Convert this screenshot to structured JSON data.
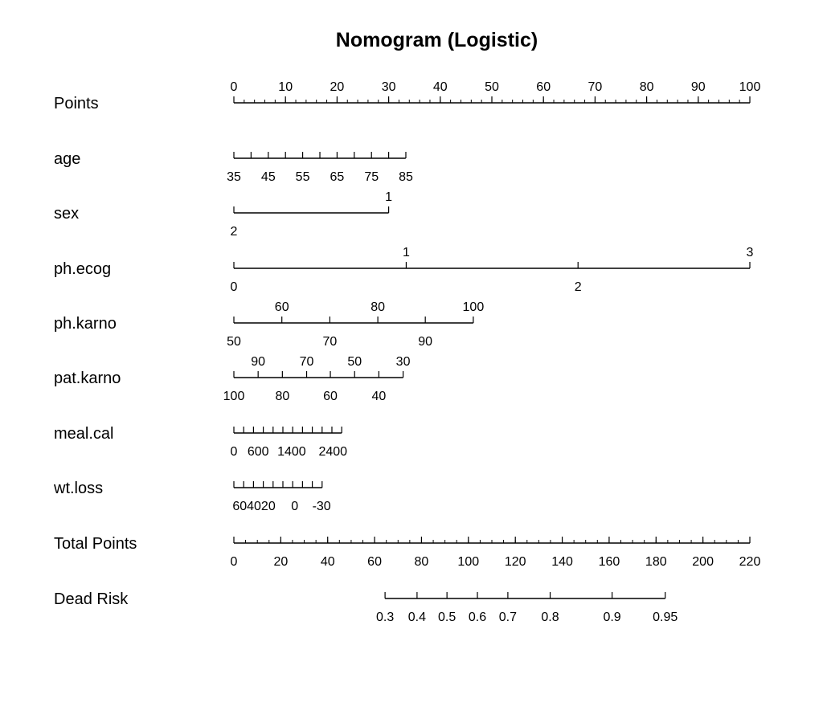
{
  "chart_data": {
    "type": "nomogram",
    "title": "Nomogram (Logistic)",
    "points_per_unit_px": 6.42,
    "rows": [
      {
        "label": "Points",
        "min": 0,
        "max": 100,
        "major": [
          0,
          10,
          20,
          30,
          40,
          50,
          60,
          70,
          80,
          90,
          100
        ],
        "minor": [
          0,
          2,
          4,
          6,
          8,
          10,
          12,
          14,
          16,
          18,
          20,
          22,
          24,
          26,
          28,
          30,
          32,
          34,
          36,
          38,
          40,
          42,
          44,
          46,
          48,
          50,
          52,
          54,
          56,
          58,
          60,
          62,
          64,
          66,
          68,
          70,
          72,
          74,
          76,
          78,
          80,
          82,
          84,
          86,
          88,
          90,
          92,
          94,
          96,
          98,
          100
        ],
        "labels_above": [
          {
            "text": "0",
            "at": 0
          },
          {
            "text": "10",
            "at": 10
          },
          {
            "text": "20",
            "at": 20
          },
          {
            "text": "30",
            "at": 30
          },
          {
            "text": "40",
            "at": 40
          },
          {
            "text": "50",
            "at": 50
          },
          {
            "text": "60",
            "at": 60
          },
          {
            "text": "70",
            "at": 70
          },
          {
            "text": "80",
            "at": 80
          },
          {
            "text": "90",
            "at": 90
          },
          {
            "text": "100",
            "at": 100
          }
        ],
        "labels_below": []
      },
      {
        "label": "age",
        "min": 0,
        "max": 33.3,
        "major": [
          0,
          3.33,
          6.67,
          10,
          13.33,
          16.67,
          20,
          23.33,
          26.67,
          30,
          33.33
        ],
        "labels_above": [],
        "labels_below": [
          {
            "text": "35",
            "at": 0
          },
          {
            "text": "45",
            "at": 6.67
          },
          {
            "text": "55",
            "at": 13.33
          },
          {
            "text": "65",
            "at": 20
          },
          {
            "text": "75",
            "at": 26.67
          },
          {
            "text": "85",
            "at": 33.33
          }
        ]
      },
      {
        "label": "sex",
        "min": 0,
        "max": 30,
        "major": [
          0,
          30
        ],
        "labels_above": [
          {
            "text": "1",
            "at": 30
          }
        ],
        "labels_below": [
          {
            "text": "2",
            "at": 0
          }
        ]
      },
      {
        "label": "ph.ecog",
        "min": 0,
        "max": 100,
        "major": [
          0,
          33.4,
          66.7,
          100
        ],
        "labels_above": [
          {
            "text": "1",
            "at": 33.4
          },
          {
            "text": "3",
            "at": 100
          }
        ],
        "labels_below": [
          {
            "text": "0",
            "at": 0
          },
          {
            "text": "2",
            "at": 66.7
          }
        ]
      },
      {
        "label": "ph.karno",
        "min": 0,
        "max": 46.4,
        "major": [
          0,
          9.3,
          18.6,
          27.9,
          37.1,
          46.4
        ],
        "labels_above": [
          {
            "text": "60",
            "at": 9.3
          },
          {
            "text": "80",
            "at": 27.9
          },
          {
            "text": "100",
            "at": 46.4
          }
        ],
        "labels_below": [
          {
            "text": "50",
            "at": 0
          },
          {
            "text": "70",
            "at": 18.6
          },
          {
            "text": "90",
            "at": 37.1
          }
        ]
      },
      {
        "label": "pat.karno",
        "min": 0,
        "max": 32.8,
        "major": [
          0,
          4.7,
          9.4,
          14.1,
          18.7,
          23.4,
          28.1,
          32.8
        ],
        "labels_above": [
          {
            "text": "90",
            "at": 4.7
          },
          {
            "text": "70",
            "at": 14.1
          },
          {
            "text": "50",
            "at": 23.4
          },
          {
            "text": "30",
            "at": 32.8
          }
        ],
        "labels_below": [
          {
            "text": "100",
            "at": 0
          },
          {
            "text": "80",
            "at": 9.4
          },
          {
            "text": "60",
            "at": 18.7
          },
          {
            "text": "40",
            "at": 28.1
          }
        ]
      },
      {
        "label": "meal.cal",
        "min": 0,
        "max": 20.9,
        "major": [
          0,
          1.9,
          3.8,
          5.7,
          7.6,
          9.5,
          11.4,
          13.3,
          15.2,
          17.1,
          19.0,
          20.9
        ],
        "labels_above": [],
        "labels_below": [
          {
            "text": "0",
            "at": 0
          },
          {
            "text": "600",
            "at": 4.7
          },
          {
            "text": "1400",
            "at": 11.2
          },
          {
            "text": "2400",
            "at": 19.2
          }
        ]
      },
      {
        "label": "wt.loss",
        "min": 0,
        "max": 17.1,
        "major": [
          0,
          1.9,
          3.8,
          5.7,
          7.6,
          9.5,
          11.4,
          13.3,
          15.2,
          17.1
        ],
        "labels_above": [],
        "labels_below": [
          {
            "text": "604020",
            "at": 3.9
          },
          {
            "text": "0",
            "at": 11.8
          },
          {
            "text": "-30",
            "at": 17.0
          }
        ]
      },
      {
        "label": "Total Points",
        "min": 0,
        "max": 100,
        "major": [
          0,
          9.09,
          18.18,
          27.27,
          36.36,
          45.45,
          54.55,
          63.64,
          72.73,
          81.82,
          90.91,
          100
        ],
        "minor": [
          0,
          2.27,
          4.55,
          6.82,
          9.09,
          11.36,
          13.64,
          15.91,
          18.18,
          20.45,
          22.73,
          25,
          27.27,
          29.55,
          31.82,
          34.09,
          36.36,
          38.64,
          40.91,
          43.18,
          45.45,
          47.73,
          50,
          52.27,
          54.55,
          56.82,
          59.09,
          61.36,
          63.64,
          65.91,
          68.18,
          70.45,
          72.73,
          75,
          77.27,
          79.55,
          81.82,
          84.09,
          86.36,
          88.64,
          90.91,
          93.18,
          95.45,
          97.73,
          100
        ],
        "labels_above": [],
        "labels_below": [
          {
            "text": "0",
            "at": 0
          },
          {
            "text": "20",
            "at": 9.09
          },
          {
            "text": "40",
            "at": 18.18
          },
          {
            "text": "60",
            "at": 27.27
          },
          {
            "text": "80",
            "at": 36.36
          },
          {
            "text": "100",
            "at": 45.45
          },
          {
            "text": "120",
            "at": 54.55
          },
          {
            "text": "140",
            "at": 63.64
          },
          {
            "text": "160",
            "at": 72.73
          },
          {
            "text": "180",
            "at": 81.82
          },
          {
            "text": "200",
            "at": 90.91
          },
          {
            "text": "220",
            "at": 100
          }
        ]
      },
      {
        "label": "Dead Risk",
        "min": 29.3,
        "max": 83.6,
        "major": [
          29.3,
          35.5,
          41.3,
          47.2,
          53.1,
          61.3,
          73.3,
          83.6
        ],
        "labels_above": [],
        "labels_below": [
          {
            "text": "0.3",
            "at": 29.3
          },
          {
            "text": "0.4",
            "at": 35.5
          },
          {
            "text": "0.5",
            "at": 41.3
          },
          {
            "text": "0.6",
            "at": 47.2
          },
          {
            "text": "0.7",
            "at": 53.1
          },
          {
            "text": "0.8",
            "at": 61.3
          },
          {
            "text": "0.9",
            "at": 73.3
          },
          {
            "text": "0.95",
            "at": 83.6
          }
        ]
      }
    ]
  }
}
